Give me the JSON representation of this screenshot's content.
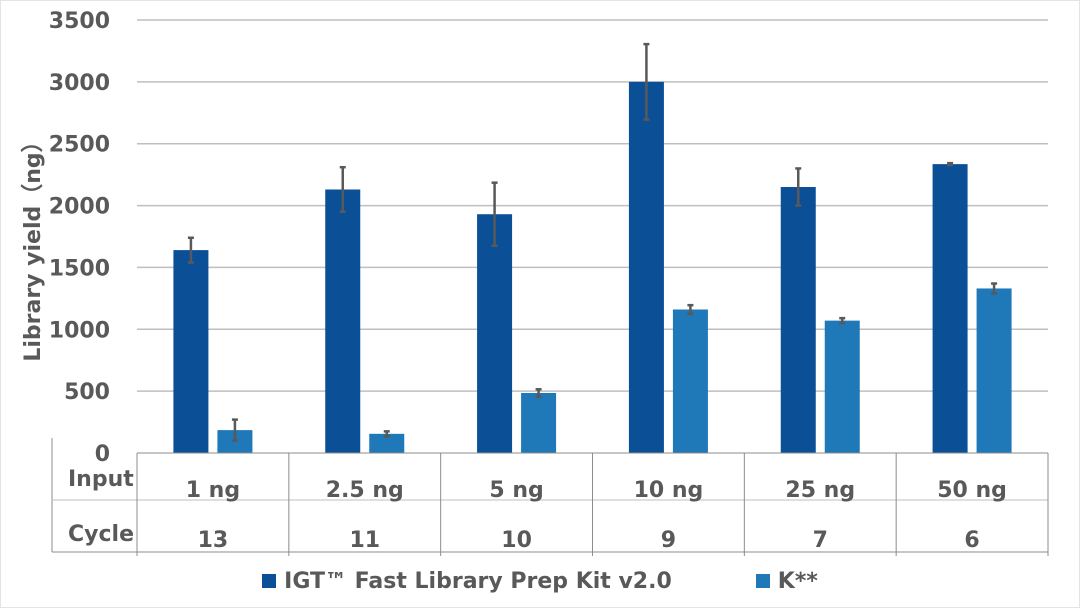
{
  "chart_data": {
    "type": "bar",
    "title": "",
    "xlabel": "",
    "ylabel": "Library yield（ng）",
    "ylim": [
      0,
      3500
    ],
    "yticks": [
      0,
      500,
      1000,
      1500,
      2000,
      2500,
      3000,
      3500
    ],
    "grid": true,
    "legend_position": "bottom",
    "categories": [
      "1 ng",
      "2.5 ng",
      "5 ng",
      "10 ng",
      "25 ng",
      "50 ng"
    ],
    "table_rows": [
      {
        "label": "Input",
        "values": [
          "1 ng",
          "2.5 ng",
          "5 ng",
          "10 ng",
          "25 ng",
          "50 ng"
        ]
      },
      {
        "label": "Cycle",
        "values": [
          "13",
          "11",
          "10",
          "9",
          "7",
          "6"
        ]
      }
    ],
    "series": [
      {
        "name": "IGT™ Fast Library Prep Kit v2.0",
        "color": "#0b4f96",
        "values": [
          1640,
          2130,
          1930,
          3000,
          2150,
          2335
        ],
        "error": [
          100,
          180,
          255,
          305,
          150,
          8
        ]
      },
      {
        "name": "K**",
        "color": "#1f78b8",
        "values": [
          185,
          155,
          485,
          1160,
          1070,
          1330
        ],
        "error": [
          85,
          20,
          30,
          35,
          20,
          40
        ]
      }
    ]
  },
  "axis": {
    "y_label": "Library yield（ng）",
    "y_ticks": [
      "0",
      "500",
      "1000",
      "1500",
      "2000",
      "2500",
      "3000",
      "3500"
    ]
  },
  "table": {
    "row_labels": [
      "Input",
      "Cycle"
    ],
    "input": [
      "1 ng",
      "2.5 ng",
      "5 ng",
      "10 ng",
      "25 ng",
      "50 ng"
    ],
    "cycle": [
      "13",
      "11",
      "10",
      "9",
      "7",
      "6"
    ]
  },
  "legend": {
    "items": [
      {
        "label": "IGT™ Fast Library Prep Kit v2.0",
        "color": "#0b4f96"
      },
      {
        "label": "K**",
        "color": "#1f78b8"
      }
    ]
  },
  "colors": {
    "series1": "#0b4f96",
    "series2": "#1f78b8",
    "grid": "#bfbfbf",
    "text": "#595959",
    "error_bar": "#595959"
  }
}
